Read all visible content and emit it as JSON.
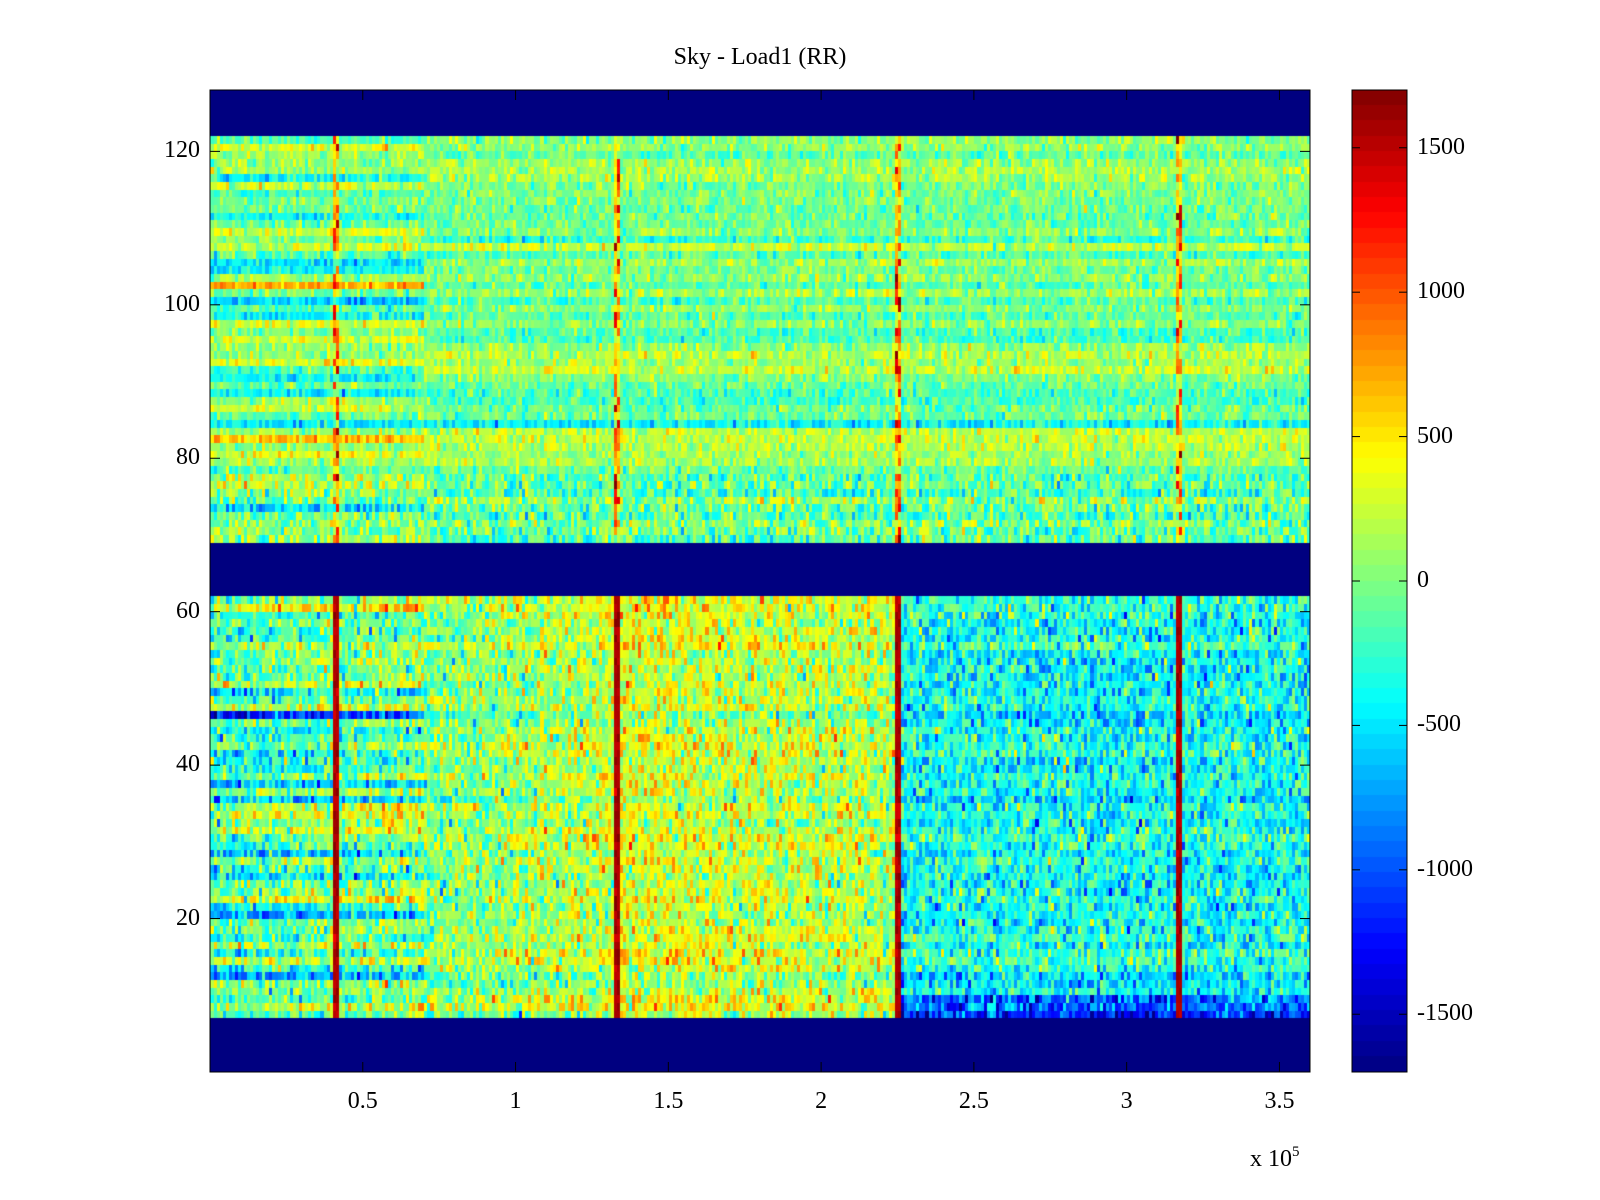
{
  "chart_data": {
    "type": "heatmap",
    "title": "Sky - Load1 (RR)",
    "xlabel": "",
    "ylabel": "",
    "x_range": [
      0,
      360000
    ],
    "y_range": [
      0,
      128
    ],
    "x_ticks": [
      50000,
      100000,
      150000,
      200000,
      250000,
      300000,
      350000
    ],
    "x_tick_labels": [
      "0.5",
      "1",
      "1.5",
      "2",
      "2.5",
      "3",
      "3.5"
    ],
    "x_exponent_label": "x 10",
    "x_exponent_power": "5",
    "y_ticks": [
      20,
      40,
      60,
      80,
      100,
      120
    ],
    "y_tick_labels": [
      "20",
      "40",
      "60",
      "80",
      "100",
      "120"
    ],
    "colorbar": {
      "range": [
        -1700,
        1700
      ],
      "ticks": [
        1500,
        1000,
        500,
        0,
        -500,
        -1000,
        -1500
      ],
      "tick_labels": [
        "1500",
        "1000",
        "500",
        "0",
        "-500",
        "-1000",
        "-1500"
      ],
      "colormap": "jet"
    },
    "masked_rows": [
      {
        "from": 0,
        "to": 7,
        "value": -1700
      },
      {
        "from": 62,
        "to": 69,
        "value": -1700
      },
      {
        "from": 122,
        "to": 128,
        "value": -1700
      }
    ],
    "spike_columns_x": [
      41000,
      133000,
      225000,
      317000
    ],
    "bands": [
      {
        "rows": [
          7,
          62
        ],
        "description_values": {
          "left_mean": -200,
          "middle_mean": 300,
          "right_mean": -350
        }
      },
      {
        "rows": [
          69,
          122
        ],
        "description_values": {
          "mean": 0
        }
      }
    ],
    "grid": false,
    "legend": "none"
  }
}
